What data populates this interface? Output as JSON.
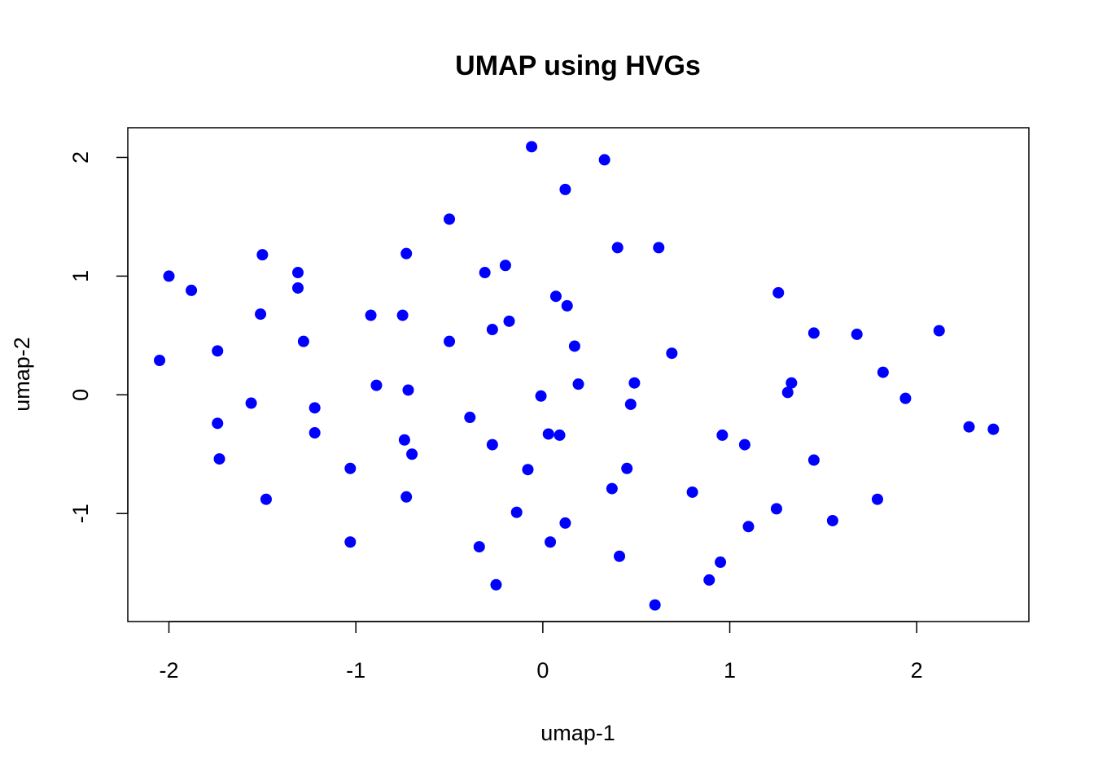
{
  "chart_data": {
    "type": "scatter",
    "title": "UMAP using HVGs",
    "xlabel": "umap-1",
    "ylabel": "umap-2",
    "xlim": [
      -2.22,
      2.6
    ],
    "ylim": [
      -1.91,
      2.25
    ],
    "xticks": [
      -2,
      -1,
      0,
      1,
      2
    ],
    "xtick_labels": [
      "-2",
      "-1",
      "0",
      "1",
      "2"
    ],
    "yticks": [
      -1,
      0,
      1,
      2
    ],
    "ytick_labels": [
      "-1",
      "0",
      "1",
      "2"
    ],
    "grid": false,
    "legend": "none",
    "point_color": "#0000ff",
    "points": [
      [
        -2.05,
        0.29
      ],
      [
        -2.0,
        1.0
      ],
      [
        -1.88,
        0.88
      ],
      [
        -1.74,
        0.37
      ],
      [
        -1.74,
        -0.24
      ],
      [
        -1.73,
        -0.54
      ],
      [
        -1.56,
        -0.07
      ],
      [
        -1.51,
        0.68
      ],
      [
        -1.5,
        1.18
      ],
      [
        -1.48,
        -0.88
      ],
      [
        -1.31,
        1.03
      ],
      [
        -1.31,
        0.9
      ],
      [
        -1.28,
        0.45
      ],
      [
        -1.22,
        -0.11
      ],
      [
        -1.22,
        -0.32
      ],
      [
        -1.03,
        -0.62
      ],
      [
        -1.03,
        -1.24
      ],
      [
        -0.92,
        0.67
      ],
      [
        -0.89,
        0.08
      ],
      [
        -0.75,
        0.67
      ],
      [
        -0.74,
        -0.38
      ],
      [
        -0.73,
        1.19
      ],
      [
        -0.73,
        -0.86
      ],
      [
        -0.72,
        0.04
      ],
      [
        -0.7,
        -0.5
      ],
      [
        -0.5,
        1.48
      ],
      [
        -0.5,
        0.45
      ],
      [
        -0.39,
        -0.19
      ],
      [
        -0.34,
        -1.28
      ],
      [
        -0.31,
        1.03
      ],
      [
        -0.27,
        0.55
      ],
      [
        -0.27,
        -0.42
      ],
      [
        -0.25,
        -1.6
      ],
      [
        -0.2,
        1.09
      ],
      [
        -0.18,
        0.62
      ],
      [
        -0.14,
        -0.99
      ],
      [
        -0.08,
        -0.63
      ],
      [
        -0.06,
        2.09
      ],
      [
        -0.01,
        -0.01
      ],
      [
        0.03,
        -0.33
      ],
      [
        0.04,
        -1.24
      ],
      [
        0.07,
        0.83
      ],
      [
        0.09,
        -0.34
      ],
      [
        0.12,
        1.73
      ],
      [
        0.12,
        -1.08
      ],
      [
        0.13,
        0.75
      ],
      [
        0.17,
        0.41
      ],
      [
        0.19,
        0.09
      ],
      [
        0.33,
        1.98
      ],
      [
        0.37,
        -0.79
      ],
      [
        0.4,
        1.24
      ],
      [
        0.41,
        -1.36
      ],
      [
        0.45,
        -0.62
      ],
      [
        0.47,
        -0.08
      ],
      [
        0.49,
        0.1
      ],
      [
        0.6,
        -1.77
      ],
      [
        0.62,
        1.24
      ],
      [
        0.69,
        0.35
      ],
      [
        0.8,
        -0.82
      ],
      [
        0.89,
        -1.56
      ],
      [
        0.95,
        -1.41
      ],
      [
        0.96,
        -0.34
      ],
      [
        1.08,
        -0.42
      ],
      [
        1.1,
        -1.11
      ],
      [
        1.25,
        -0.96
      ],
      [
        1.26,
        0.86
      ],
      [
        1.31,
        0.02
      ],
      [
        1.33,
        0.1
      ],
      [
        1.45,
        0.52
      ],
      [
        1.45,
        -0.55
      ],
      [
        1.55,
        -1.06
      ],
      [
        1.68,
        0.51
      ],
      [
        1.79,
        -0.88
      ],
      [
        1.82,
        0.19
      ],
      [
        1.94,
        -0.03
      ],
      [
        2.12,
        0.54
      ],
      [
        2.28,
        -0.27
      ],
      [
        2.41,
        -0.29
      ]
    ]
  }
}
